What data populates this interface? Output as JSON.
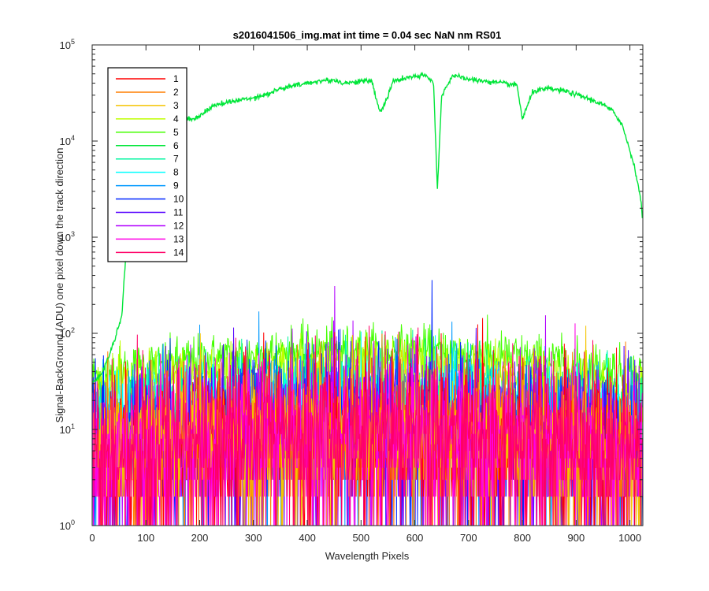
{
  "chart_data": {
    "type": "line",
    "title": "s2016041506_img.mat int time = 0.04 sec  NaN nm RS01",
    "xlabel": "Wavelength Pixels",
    "ylabel": "Signal-BackGround (ADU) one pixel down the track direction",
    "xlim": [
      0,
      1024
    ],
    "ylim": [
      1,
      100000
    ],
    "yscale": "log",
    "grid": false,
    "legend_position": "top-left",
    "x_ticks": [
      "0",
      "100",
      "200",
      "300",
      "400",
      "500",
      "600",
      "700",
      "800",
      "900",
      "1000"
    ],
    "y_ticks": [
      {
        "base": "10",
        "exp": "0"
      },
      {
        "base": "10",
        "exp": "1"
      },
      {
        "base": "10",
        "exp": "2"
      },
      {
        "base": "10",
        "exp": "3"
      },
      {
        "base": "10",
        "exp": "4"
      },
      {
        "base": "10",
        "exp": "5"
      }
    ],
    "series": [
      {
        "name": "1",
        "color": "#ff0000",
        "level": 9,
        "noise": 0.9
      },
      {
        "name": "2",
        "color": "#ff7f00",
        "level": 9,
        "noise": 0.9
      },
      {
        "name": "3",
        "color": "#f5c400",
        "level": 10,
        "noise": 0.8
      },
      {
        "name": "4",
        "color": "#bfff00",
        "level": 45,
        "noise": 0.35
      },
      {
        "name": "5",
        "color": "#44ff00",
        "level": 65,
        "noise": 0.3
      },
      {
        "name": "6",
        "color": "#00e639",
        "level": 0,
        "noise": 0.02
      },
      {
        "name": "7",
        "color": "#00f5a0",
        "level": 25,
        "noise": 0.5
      },
      {
        "name": "8",
        "color": "#00ffff",
        "level": 22,
        "noise": 0.55
      },
      {
        "name": "9",
        "color": "#0099ff",
        "level": 15,
        "noise": 0.7
      },
      {
        "name": "10",
        "color": "#0026ff",
        "level": 12,
        "noise": 0.8
      },
      {
        "name": "11",
        "color": "#5500ff",
        "level": 11,
        "noise": 0.85
      },
      {
        "name": "12",
        "color": "#b200ff",
        "level": 10,
        "noise": 0.9
      },
      {
        "name": "13",
        "color": "#ff00e6",
        "level": 9,
        "noise": 0.9
      },
      {
        "name": "14",
        "color": "#ff0066",
        "level": 10,
        "noise": 0.9
      }
    ],
    "series6_profile": {
      "x": [
        0,
        20,
        40,
        55,
        62,
        68,
        75,
        90,
        120,
        150,
        170,
        190,
        230,
        280,
        320,
        350,
        380,
        420,
        450,
        470,
        500,
        520,
        535,
        545,
        560,
        590,
        620,
        635,
        642,
        650,
        670,
        700,
        730,
        760,
        790,
        800,
        820,
        850,
        880,
        920,
        950,
        970,
        985,
        1000,
        1010,
        1020,
        1024
      ],
      "y": [
        30,
        40,
        80,
        150,
        600,
        3000,
        10000,
        13000,
        15000,
        16000,
        17000,
        17000,
        24000,
        27000,
        30000,
        35000,
        38000,
        42000,
        43000,
        40000,
        42000,
        42000,
        20000,
        25000,
        42000,
        46000,
        48000,
        40000,
        3100,
        30000,
        48000,
        44000,
        42000,
        40000,
        38000,
        17000,
        33000,
        35000,
        33000,
        28000,
        24000,
        20000,
        15000,
        8000,
        5000,
        2500,
        1500
      ]
    }
  }
}
